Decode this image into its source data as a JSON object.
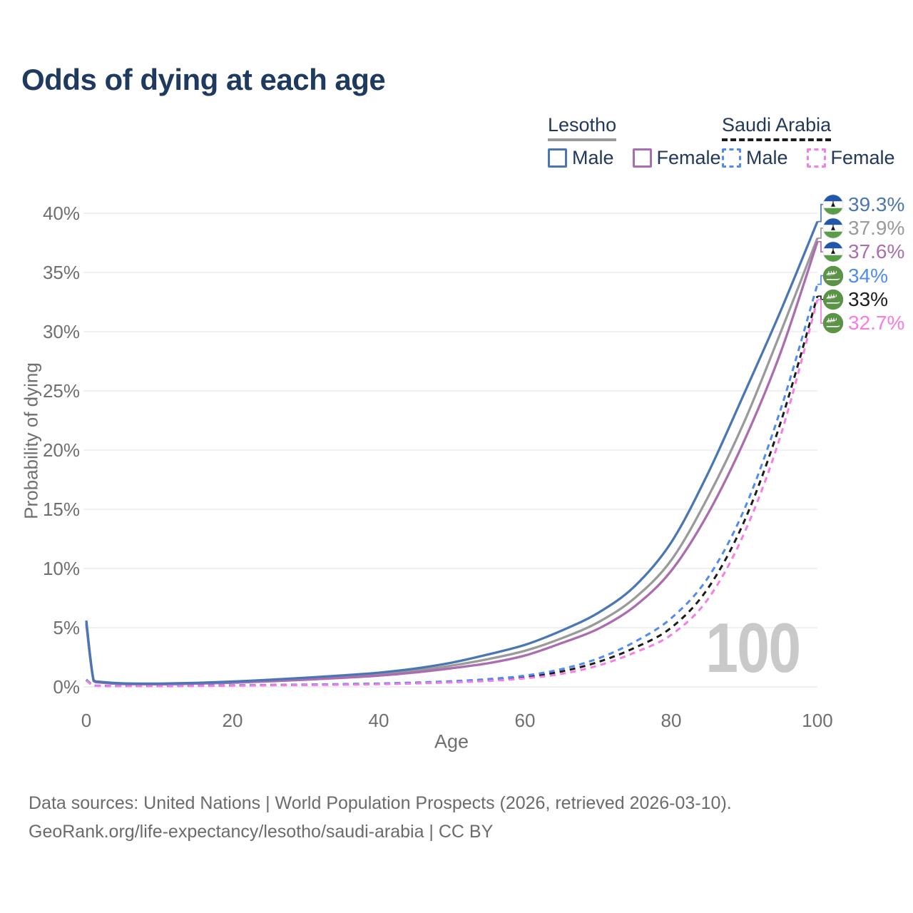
{
  "title": "Odds of dying at each age",
  "legend": {
    "groups": [
      {
        "label": "Lesotho",
        "line_style": "solid",
        "line_color": "#9a9a9a",
        "items": [
          {
            "label": "Male",
            "color": "#4a77b4",
            "style": "solid"
          },
          {
            "label": "Female",
            "color": "#ab6cb0",
            "style": "solid"
          }
        ]
      },
      {
        "label": "Saudi Arabia",
        "line_style": "dashed",
        "line_color": "#1c1c1c",
        "items": [
          {
            "label": "Male",
            "color": "#4f8bf0",
            "style": "dashed"
          },
          {
            "label": "Female",
            "color": "#f77ce3",
            "style": "dashed"
          }
        ]
      }
    ]
  },
  "chart_data": {
    "type": "line",
    "title": "Odds of dying at each age",
    "xlabel": "Age",
    "ylabel": "Probability of dying",
    "xlim": [
      0,
      100
    ],
    "ylim": [
      0,
      41
    ],
    "grid": "horizontal",
    "x_ticks": [
      0,
      20,
      40,
      60,
      80,
      100
    ],
    "y_tick_labels": [
      "0%",
      "5%",
      "10%",
      "15%",
      "20%",
      "25%",
      "30%",
      "35%",
      "40%"
    ],
    "x": [
      0,
      1,
      2,
      5,
      10,
      15,
      20,
      25,
      30,
      35,
      40,
      45,
      50,
      55,
      60,
      65,
      70,
      75,
      80,
      85,
      90,
      95,
      100
    ],
    "series": [
      {
        "name": "Lesotho Male",
        "color": "#4a77b4",
        "dashed": false,
        "flag": "lesotho",
        "end_label": "39.3%",
        "values": [
          5.6,
          0.55,
          0.42,
          0.3,
          0.28,
          0.34,
          0.45,
          0.6,
          0.78,
          0.97,
          1.2,
          1.55,
          2.05,
          2.75,
          3.55,
          4.75,
          6.25,
          8.5,
          12.2,
          18.0,
          24.8,
          31.8,
          39.3
        ]
      },
      {
        "name": "Lesotho",
        "color": "#9a9a9a",
        "dashed": false,
        "flag": "lesotho",
        "end_label": "37.9%",
        "values": [
          5.45,
          0.51,
          0.39,
          0.27,
          0.25,
          0.3,
          0.4,
          0.53,
          0.68,
          0.86,
          1.07,
          1.38,
          1.8,
          2.35,
          3.05,
          4.1,
          5.45,
          7.5,
          10.7,
          16.0,
          22.4,
          30.0,
          37.9
        ]
      },
      {
        "name": "Lesotho Female",
        "color": "#ab6cb0",
        "dashed": false,
        "flag": "lesotho",
        "end_label": "37.6%",
        "values": [
          5.3,
          0.48,
          0.36,
          0.24,
          0.22,
          0.27,
          0.35,
          0.47,
          0.6,
          0.76,
          0.95,
          1.22,
          1.58,
          2.0,
          2.65,
          3.7,
          4.9,
          6.8,
          9.8,
          14.6,
          20.8,
          28.3,
          37.6
        ]
      },
      {
        "name": "Saudi Arabia Male",
        "color": "#4f8bf0",
        "dashed": true,
        "flag": "saudi-arabia",
        "end_label": "34%",
        "values": [
          0.62,
          0.12,
          0.1,
          0.08,
          0.08,
          0.11,
          0.14,
          0.17,
          0.2,
          0.24,
          0.29,
          0.37,
          0.48,
          0.66,
          0.95,
          1.5,
          2.4,
          3.8,
          5.8,
          9.2,
          15.0,
          23.5,
          34.0
        ]
      },
      {
        "name": "Saudi Arabia",
        "color": "#1c1c1c",
        "dashed": true,
        "flag": "saudi-arabia",
        "end_label": "33%",
        "values": [
          0.57,
          0.11,
          0.09,
          0.07,
          0.07,
          0.1,
          0.12,
          0.15,
          0.18,
          0.21,
          0.26,
          0.33,
          0.43,
          0.58,
          0.83,
          1.3,
          2.1,
          3.3,
          5.0,
          8.3,
          14.0,
          22.4,
          33.0
        ]
      },
      {
        "name": "Saudi Arabia Female",
        "color": "#f77ce3",
        "dashed": true,
        "flag": "saudi-arabia",
        "end_label": "32.7%",
        "values": [
          0.52,
          0.1,
          0.08,
          0.06,
          0.06,
          0.08,
          0.1,
          0.13,
          0.15,
          0.18,
          0.22,
          0.29,
          0.38,
          0.5,
          0.72,
          1.1,
          1.8,
          2.9,
          4.4,
          7.4,
          13.0,
          21.3,
          32.7
        ]
      }
    ]
  },
  "flag_colors": {
    "lesotho": {
      "blue": "#2156a8",
      "white": "#fdfdfd",
      "green": "#5a9c49",
      "hat": "#151515"
    },
    "saudi_arabia": {
      "green": "#5b9447",
      "text": "#ffffff"
    }
  },
  "watermark": "100",
  "footer": {
    "line1": "Data sources: United Nations | World Population Prospects (2026, retrieved 2026-03-10).",
    "line2": "GeoRank.org/life-expectancy/lesotho/saudi-arabia | CC BY"
  }
}
